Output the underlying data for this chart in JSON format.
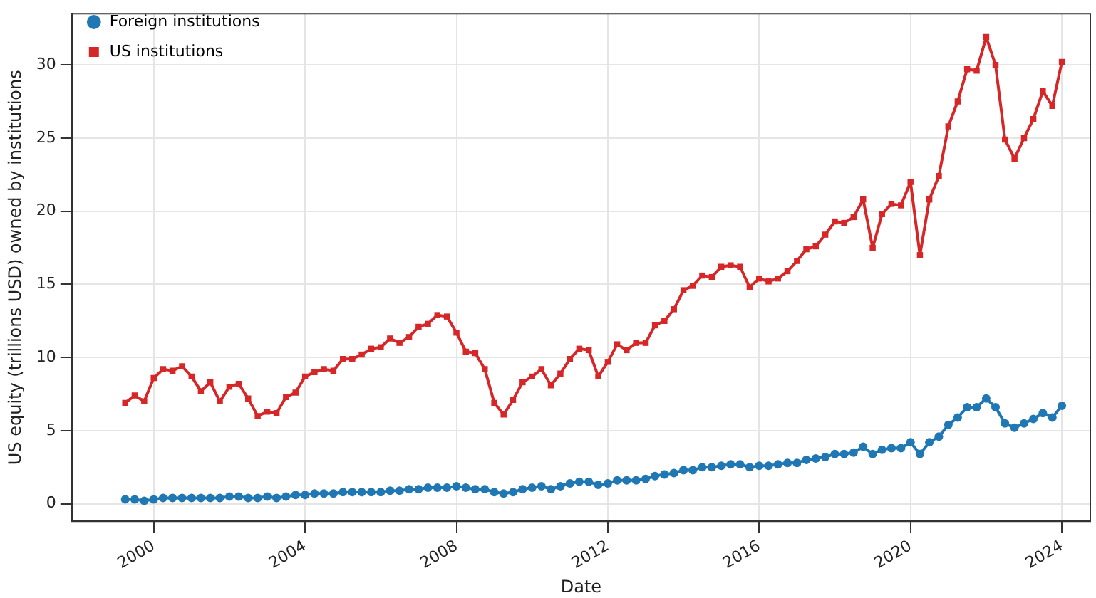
{
  "chart_data": {
    "type": "line",
    "xlabel": "Date",
    "ylabel": "US equity (trillions USD) owned by institutions",
    "x": [
      "1999-03-31",
      "1999-06-30",
      "1999-09-30",
      "1999-12-31",
      "2000-03-31",
      "2000-06-30",
      "2000-09-30",
      "2000-12-31",
      "2001-03-31",
      "2001-06-30",
      "2001-09-30",
      "2001-12-31",
      "2002-03-31",
      "2002-06-30",
      "2002-09-30",
      "2002-12-31",
      "2003-03-31",
      "2003-06-30",
      "2003-09-30",
      "2003-12-31",
      "2004-03-31",
      "2004-06-30",
      "2004-09-30",
      "2004-12-31",
      "2005-03-31",
      "2005-06-30",
      "2005-09-30",
      "2005-12-31",
      "2006-03-31",
      "2006-06-30",
      "2006-09-30",
      "2006-12-31",
      "2007-03-31",
      "2007-06-30",
      "2007-09-30",
      "2007-12-31",
      "2008-03-31",
      "2008-06-30",
      "2008-09-30",
      "2008-12-31",
      "2009-03-31",
      "2009-06-30",
      "2009-09-30",
      "2009-12-31",
      "2010-03-31",
      "2010-06-30",
      "2010-09-30",
      "2010-12-31",
      "2011-03-31",
      "2011-06-30",
      "2011-09-30",
      "2011-12-31",
      "2012-03-31",
      "2012-06-30",
      "2012-09-30",
      "2012-12-31",
      "2013-03-31",
      "2013-06-30",
      "2013-09-30",
      "2013-12-31",
      "2014-03-31",
      "2014-06-30",
      "2014-09-30",
      "2014-12-31",
      "2015-03-31",
      "2015-06-30",
      "2015-09-30",
      "2015-12-31",
      "2016-03-31",
      "2016-06-30",
      "2016-09-30",
      "2016-12-31",
      "2017-03-31",
      "2017-06-30",
      "2017-09-30",
      "2017-12-31",
      "2018-03-31",
      "2018-06-30",
      "2018-09-30",
      "2018-12-31",
      "2019-03-31",
      "2019-06-30",
      "2019-09-30",
      "2019-12-31",
      "2020-03-31",
      "2020-06-30",
      "2020-09-30",
      "2020-12-31",
      "2021-03-31",
      "2021-06-30",
      "2021-09-30",
      "2021-12-31",
      "2022-03-31",
      "2022-06-30",
      "2022-09-30",
      "2022-12-31",
      "2023-03-31",
      "2023-06-30",
      "2023-09-30",
      "2023-12-31"
    ],
    "series": [
      {
        "name": "Foreign institutions",
        "color": "#1f77b4",
        "marker": "circle",
        "values": [
          0.3,
          0.3,
          0.2,
          0.3,
          0.4,
          0.4,
          0.4,
          0.4,
          0.4,
          0.4,
          0.4,
          0.5,
          0.5,
          0.4,
          0.4,
          0.5,
          0.4,
          0.5,
          0.6,
          0.6,
          0.7,
          0.7,
          0.7,
          0.8,
          0.8,
          0.8,
          0.8,
          0.8,
          0.9,
          0.9,
          1.0,
          1.0,
          1.1,
          1.1,
          1.1,
          1.2,
          1.1,
          1.0,
          1.0,
          0.8,
          0.7,
          0.8,
          1.0,
          1.1,
          1.2,
          1.0,
          1.2,
          1.4,
          1.5,
          1.5,
          1.3,
          1.4,
          1.6,
          1.6,
          1.6,
          1.7,
          1.9,
          2.0,
          2.1,
          2.3,
          2.3,
          2.5,
          2.5,
          2.6,
          2.7,
          2.7,
          2.5,
          2.6,
          2.6,
          2.7,
          2.8,
          2.8,
          3.0,
          3.1,
          3.2,
          3.4,
          3.4,
          3.5,
          3.9,
          3.4,
          3.7,
          3.8,
          3.8,
          4.2,
          3.4,
          4.2,
          4.6,
          5.4,
          5.9,
          6.6,
          6.6,
          7.2,
          6.6,
          5.5,
          5.2,
          5.5,
          5.8,
          6.2,
          5.9,
          6.7
        ]
      },
      {
        "name": "US institutions",
        "color": "#d62728",
        "marker": "square",
        "values": [
          6.9,
          7.4,
          7.0,
          8.6,
          9.2,
          9.1,
          9.4,
          8.7,
          7.7,
          8.3,
          7.0,
          8.0,
          8.2,
          7.2,
          6.0,
          6.3,
          6.2,
          7.3,
          7.6,
          8.7,
          9.0,
          9.2,
          9.1,
          9.9,
          9.9,
          10.2,
          10.6,
          10.7,
          11.3,
          11.0,
          11.4,
          12.1,
          12.3,
          12.9,
          12.8,
          11.7,
          10.4,
          10.3,
          9.2,
          6.9,
          6.1,
          7.1,
          8.3,
          8.7,
          9.2,
          8.1,
          8.9,
          9.9,
          10.6,
          10.5,
          8.7,
          9.7,
          10.9,
          10.5,
          11.0,
          11.0,
          12.2,
          12.5,
          13.3,
          14.6,
          14.9,
          15.6,
          15.5,
          16.2,
          16.3,
          16.2,
          14.8,
          15.4,
          15.2,
          15.4,
          15.9,
          16.6,
          17.4,
          17.6,
          18.4,
          19.3,
          19.2,
          19.6,
          20.8,
          17.5,
          19.8,
          20.5,
          20.4,
          22.0,
          17.0,
          20.8,
          22.4,
          25.8,
          27.5,
          29.7,
          29.6,
          31.9,
          30.0,
          24.9,
          23.6,
          25.0,
          26.3,
          28.2,
          27.2,
          30.2
        ]
      }
    ],
    "xlim": [
      "1997-11",
      "2024-10"
    ],
    "xticks": [
      "2000",
      "2004",
      "2008",
      "2012",
      "2016",
      "2020",
      "2024"
    ],
    "ylim": [
      -1.2,
      33.5
    ],
    "yticks": [
      0,
      5,
      10,
      15,
      20,
      25,
      30
    ],
    "grid": true,
    "legend": "top left",
    "line_style": "solid"
  }
}
